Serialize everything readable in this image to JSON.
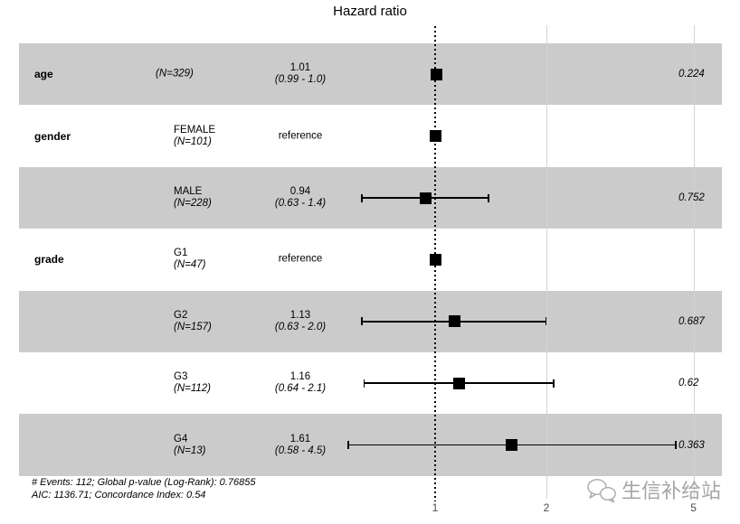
{
  "chart_data": {
    "type": "scatter",
    "subtype": "forest-plot-hazard-ratio",
    "title": "Hazard ratio",
    "x_scale": "log",
    "x_ticks": [
      1,
      2,
      5
    ],
    "reference_line": 1,
    "legend": "none",
    "grid": "vertical-only",
    "rows": [
      {
        "variable": "age",
        "level": "",
        "n": "(N=329)",
        "estimate": "1.01",
        "ci": "(0.99 - 1.0)",
        "hr": 1.01,
        "low": 0.99,
        "high": 1.0,
        "p": "0.224",
        "shaded": true,
        "reference": false
      },
      {
        "variable": "gender",
        "level": "FEMALE",
        "n": "(N=101)",
        "estimate": "reference",
        "ci": "",
        "hr": 1.0,
        "low": null,
        "high": null,
        "p": "",
        "shaded": false,
        "reference": true
      },
      {
        "variable": "",
        "level": "MALE",
        "n": "(N=228)",
        "estimate": "0.94",
        "ci": "(0.63 - 1.4)",
        "hr": 0.94,
        "low": 0.63,
        "high": 1.4,
        "p": "0.752",
        "shaded": true,
        "reference": false
      },
      {
        "variable": "grade",
        "level": "G1",
        "n": "(N=47)",
        "estimate": "reference",
        "ci": "",
        "hr": 1.0,
        "low": null,
        "high": null,
        "p": "",
        "shaded": false,
        "reference": true
      },
      {
        "variable": "",
        "level": "G2",
        "n": "(N=157)",
        "estimate": "1.13",
        "ci": "(0.63 - 2.0)",
        "hr": 1.13,
        "low": 0.63,
        "high": 2.0,
        "p": "0.687",
        "shaded": true,
        "reference": false
      },
      {
        "variable": "",
        "level": "G3",
        "n": "(N=112)",
        "estimate": "1.16",
        "ci": "(0.64 - 2.1)",
        "hr": 1.16,
        "low": 0.64,
        "high": 2.1,
        "p": "0.62",
        "shaded": false,
        "reference": false
      },
      {
        "variable": "",
        "level": "G4",
        "n": "(N=13)",
        "estimate": "1.61",
        "ci": "(0.58 - 4.5)",
        "hr": 1.61,
        "low": 0.58,
        "high": 4.5,
        "p": "0.363",
        "shaded": true,
        "reference": false
      }
    ],
    "footnotes": [
      "# Events: 112; Global p-value (Log-Rank): 0.76855",
      "AIC: 1136.71; Concordance Index: 0.54"
    ]
  },
  "watermark": {
    "icon": "wechat-icon",
    "text": "生信补给站"
  },
  "colors": {
    "stripe": "#cbcbcb",
    "gridline": "#d4d4d4",
    "reference_dotted": "#000000",
    "marker": "#000000",
    "axis_text": "#4d4d4d",
    "watermark": "#a6a6a6"
  }
}
